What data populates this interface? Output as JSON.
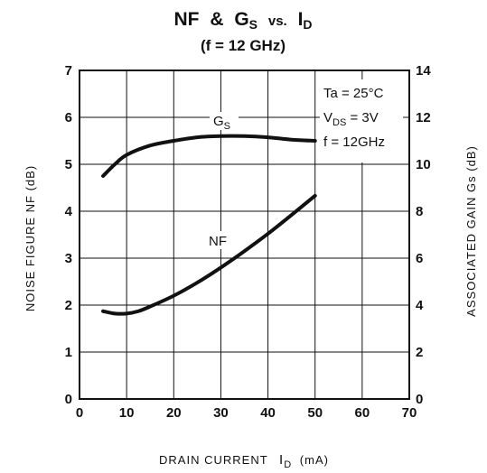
{
  "chart_data": {
    "type": "line",
    "title": {
      "main": "NF",
      "amp": "&",
      "gs_main": "G",
      "gs_sub": "S",
      "vs": "vs.",
      "id_main": "I",
      "id_sub": "D"
    },
    "subtitle": "(f = 12 GHz)",
    "xlabel": {
      "main": "DRAIN CURRENT",
      "symbol": "I",
      "symbol_sub": "D",
      "unit": "(mA)"
    },
    "ylabel_left": "NOISE FIGURE NF (dB)",
    "ylabel_right": "ASSOCIATED GAIN Gs (dB)",
    "xlim": [
      0,
      70
    ],
    "ylim_left": [
      0,
      7
    ],
    "ylim_right": [
      0,
      14
    ],
    "x_ticks": [
      0,
      10,
      20,
      30,
      40,
      50,
      60,
      70
    ],
    "y_left_ticks": [
      0,
      1,
      2,
      3,
      4,
      5,
      6,
      7
    ],
    "y_right_ticks": [
      0,
      2,
      4,
      6,
      8,
      10,
      12,
      14
    ],
    "grid": true,
    "conditions": [
      {
        "main": "Ta = 25°C",
        "sub": "",
        "rest": ""
      },
      {
        "main": "V",
        "sub": "DS",
        "rest": " = 3V"
      },
      {
        "main": "f = 12GHz",
        "sub": "",
        "rest": ""
      }
    ],
    "series": [
      {
        "name": "Gs",
        "label_main": "G",
        "label_sub": "S",
        "axis": "right",
        "x": [
          5,
          7.5,
          10,
          15,
          20,
          25,
          30,
          35,
          40,
          45,
          50
        ],
        "y": [
          9.5,
          10,
          10.4,
          10.8,
          11.0,
          11.15,
          11.2,
          11.2,
          11.15,
          11.05,
          11.0
        ]
      },
      {
        "name": "NF",
        "label_main": "NF",
        "label_sub": "",
        "axis": "left",
        "x": [
          5,
          7.5,
          10,
          12.5,
          15,
          20,
          25,
          30,
          35,
          40,
          45,
          50
        ],
        "y": [
          1.87,
          1.82,
          1.82,
          1.87,
          1.97,
          2.2,
          2.48,
          2.8,
          3.15,
          3.52,
          3.92,
          4.33
        ]
      }
    ],
    "colors": {
      "line": "#111111",
      "grid": "#111111",
      "frame": "#111111",
      "background": "#ffffff"
    }
  }
}
